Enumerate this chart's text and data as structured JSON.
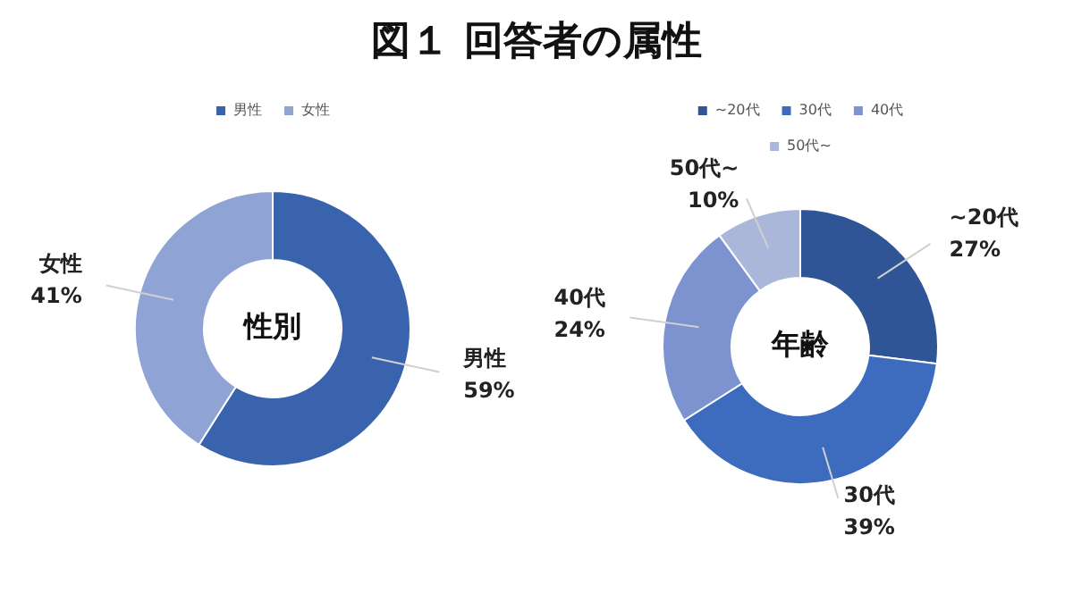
{
  "chart_data": [
    {
      "type": "donut",
      "title": "図１ 回答者の属性",
      "categories": [
        "男性",
        "女性"
      ],
      "values": [
        59,
        41
      ],
      "value_labels": [
        "59%",
        "41%"
      ],
      "colors": [
        "#3a63ad",
        "#8fa3d4"
      ],
      "legend": "top",
      "annotations": [
        "性別"
      ]
    },
    {
      "type": "donut",
      "categories": [
        "~20代",
        "30代",
        "40代",
        "50代~"
      ],
      "values": [
        27,
        39,
        24,
        10
      ],
      "value_labels": [
        "27%",
        "39%",
        "24%",
        "10%"
      ],
      "colors": [
        "#2f5597",
        "#3d6bbd",
        "#7d93cf",
        "#aab7db"
      ],
      "legend": "top",
      "annotations": [
        "年齢"
      ]
    }
  ]
}
